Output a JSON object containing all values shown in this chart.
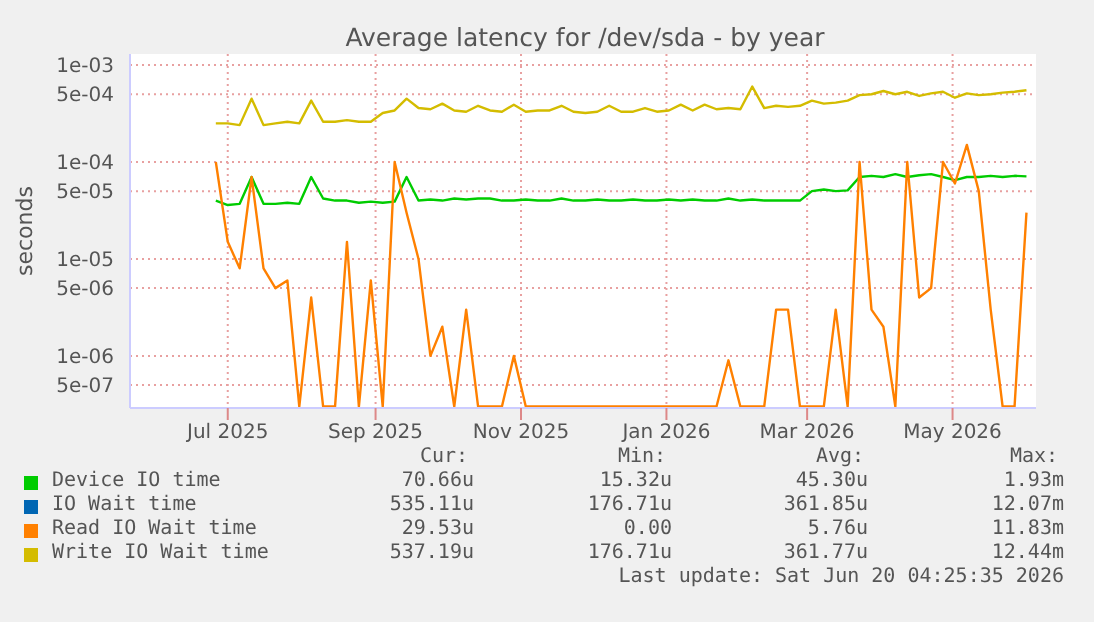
{
  "chart_data": {
    "type": "line",
    "title": "Average latency for /dev/sda - by year",
    "ylabel": "seconds",
    "log": "y",
    "grid": true,
    "legend": "bottom left",
    "marker": "none",
    "line_style": "solid",
    "x": [
      "2025-06-26",
      "2025-07-01",
      "2025-07-06",
      "2025-07-11",
      "2025-07-16",
      "2025-07-21",
      "2025-07-26",
      "2025-07-31",
      "2025-08-05",
      "2025-08-10",
      "2025-08-15",
      "2025-08-20",
      "2025-08-25",
      "2025-08-30",
      "2025-09-04",
      "2025-09-09",
      "2025-09-14",
      "2025-09-19",
      "2025-09-24",
      "2025-09-29",
      "2025-10-04",
      "2025-10-09",
      "2025-10-14",
      "2025-10-19",
      "2025-10-24",
      "2025-10-29",
      "2025-11-03",
      "2025-11-08",
      "2025-11-13",
      "2025-11-18",
      "2025-11-23",
      "2025-11-28",
      "2025-12-03",
      "2025-12-08",
      "2025-12-13",
      "2025-12-18",
      "2025-12-23",
      "2025-12-28",
      "2026-01-02",
      "2026-01-07",
      "2026-01-12",
      "2026-01-17",
      "2026-01-22",
      "2026-01-27",
      "2026-02-01",
      "2026-02-06",
      "2026-02-11",
      "2026-02-16",
      "2026-02-21",
      "2026-02-26",
      "2026-03-03",
      "2026-03-08",
      "2026-03-13",
      "2026-03-18",
      "2026-03-23",
      "2026-03-28",
      "2026-04-02",
      "2026-04-07",
      "2026-04-12",
      "2026-04-17",
      "2026-04-22",
      "2026-04-27",
      "2026-05-02",
      "2026-05-07",
      "2026-05-12",
      "2026-05-17",
      "2026-05-22",
      "2026-05-27",
      "2026-06-01"
    ],
    "xlim": [
      "2025-05-21",
      "2026-06-05"
    ],
    "xticks": [
      {
        "value": "2025-07-01",
        "label": "Jul 2025"
      },
      {
        "value": "2025-09-01",
        "label": "Sep 2025"
      },
      {
        "value": "2025-11-01",
        "label": "Nov 2025"
      },
      {
        "value": "2026-01-01",
        "label": "Jan 2026"
      },
      {
        "value": "2026-03-01",
        "label": "Mar 2026"
      },
      {
        "value": "2026-05-01",
        "label": "May 2026"
      }
    ],
    "ylim": [
      2.9e-07,
      0.0013
    ],
    "yticks": [
      {
        "value": 5e-07,
        "label": "5e-07"
      },
      {
        "value": 1e-06,
        "label": "1e-06"
      },
      {
        "value": 5e-06,
        "label": "5e-06"
      },
      {
        "value": 1e-05,
        "label": "1e-05"
      },
      {
        "value": 5e-05,
        "label": "5e-05"
      },
      {
        "value": 0.0001,
        "label": "1e-04"
      },
      {
        "value": 0.0005,
        "label": "5e-04"
      },
      {
        "value": 0.001,
        "label": "1e-03"
      }
    ],
    "series": [
      {
        "name": "Device IO time",
        "color": "#00cc00",
        "values": [
          4e-05,
          3.6e-05,
          3.7e-05,
          7e-05,
          3.7e-05,
          3.7e-05,
          3.8e-05,
          3.7e-05,
          7e-05,
          4.2e-05,
          4e-05,
          4e-05,
          3.8e-05,
          3.9e-05,
          3.8e-05,
          3.9e-05,
          7e-05,
          4e-05,
          4.1e-05,
          4e-05,
          4.2e-05,
          4.1e-05,
          4.2e-05,
          4.2e-05,
          4e-05,
          4e-05,
          4.1e-05,
          4e-05,
          4e-05,
          4.2e-05,
          4e-05,
          4e-05,
          4.1e-05,
          4e-05,
          4e-05,
          4.1e-05,
          4e-05,
          4e-05,
          4.1e-05,
          4e-05,
          4.1e-05,
          4e-05,
          4e-05,
          4.2e-05,
          4e-05,
          4.1e-05,
          4e-05,
          4e-05,
          4e-05,
          4e-05,
          5e-05,
          5.2e-05,
          5e-05,
          5.1e-05,
          7e-05,
          7.2e-05,
          7e-05,
          7.5e-05,
          7e-05,
          7.3e-05,
          7.5e-05,
          7e-05,
          6.5e-05,
          7e-05,
          7e-05,
          7.2e-05,
          7e-05,
          7.2e-05,
          7.1e-05
        ]
      },
      {
        "name": "IO Wait time",
        "color": "#0066b3",
        "values": [
          null,
          null,
          null,
          null,
          null,
          null,
          null,
          null,
          null,
          null,
          null,
          null,
          null,
          null,
          null,
          null,
          null,
          null,
          null,
          null,
          null,
          null,
          null,
          null,
          null,
          null,
          null,
          null,
          null,
          null,
          null,
          null,
          null,
          null,
          null,
          null,
          null,
          null,
          null,
          null,
          null,
          null,
          null,
          null,
          null,
          null,
          null,
          null,
          null,
          null,
          null,
          null,
          null,
          null,
          null,
          null,
          null,
          null,
          null,
          null,
          null,
          null,
          null,
          null,
          null,
          null,
          null,
          null,
          null
        ]
      },
      {
        "name": "Read IO Wait time",
        "color": "#ff8000",
        "values": [
          0.0001,
          1.5e-05,
          8e-06,
          7e-05,
          8e-06,
          5e-06,
          6e-06,
          3e-07,
          4e-06,
          3e-07,
          3e-07,
          1.5e-05,
          3e-07,
          6e-06,
          3e-07,
          0.0001,
          3e-05,
          1e-05,
          1e-06,
          2e-06,
          3e-07,
          3e-06,
          3e-07,
          3e-07,
          3e-07,
          1e-06,
          3e-07,
          3e-07,
          3e-07,
          3e-07,
          3e-07,
          3e-07,
          3e-07,
          3e-07,
          3e-07,
          3e-07,
          3e-07,
          3e-07,
          3e-07,
          3e-07,
          3e-07,
          3e-07,
          3e-07,
          9e-07,
          3e-07,
          3e-07,
          3e-07,
          3e-06,
          3e-06,
          3e-07,
          3e-07,
          3e-07,
          3e-06,
          3e-07,
          0.0001,
          3e-06,
          2e-06,
          3e-07,
          0.0001,
          4e-06,
          5e-06,
          0.0001,
          6e-05,
          0.00015,
          5e-05,
          3e-06,
          3e-07,
          3e-07,
          3e-05
        ]
      },
      {
        "name": "Write IO Wait time",
        "color": "#d4bc00",
        "values": [
          0.00025,
          0.00025,
          0.00024,
          0.00045,
          0.00024,
          0.00025,
          0.00026,
          0.00025,
          0.00043,
          0.00026,
          0.00026,
          0.00027,
          0.00026,
          0.00026,
          0.00032,
          0.00034,
          0.00045,
          0.00036,
          0.00035,
          0.0004,
          0.00034,
          0.00033,
          0.00038,
          0.00034,
          0.00033,
          0.00039,
          0.00033,
          0.00034,
          0.00034,
          0.00038,
          0.00033,
          0.00032,
          0.00033,
          0.00038,
          0.00033,
          0.00033,
          0.00036,
          0.00033,
          0.00034,
          0.00039,
          0.00034,
          0.00039,
          0.00035,
          0.00036,
          0.00035,
          0.0006,
          0.00036,
          0.00038,
          0.00037,
          0.00038,
          0.00043,
          0.0004,
          0.00041,
          0.00043,
          0.00049,
          0.0005,
          0.00054,
          0.0005,
          0.00053,
          0.00048,
          0.00051,
          0.00053,
          0.00046,
          0.00051,
          0.00049,
          0.0005,
          0.00052,
          0.00053,
          0.00055
        ]
      }
    ],
    "annotations": [
      "Cur:",
      "Min:",
      "Avg:",
      "Max:",
      "70.66u",
      "15.32u",
      "45.30u",
      "1.93m",
      "535.11u",
      "176.71u",
      "361.85u",
      "12.07m",
      "29.53u",
      "0.00",
      "5.76u",
      "11.83m",
      "537.19u",
      "176.71u",
      "361.77u",
      "12.44m",
      "Last update: Sat Jun 20 04:25:35 2026"
    ]
  }
}
